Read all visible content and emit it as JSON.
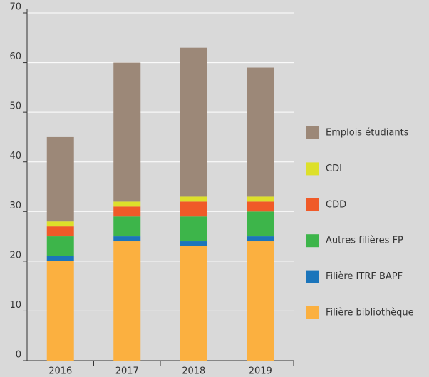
{
  "chart_data": {
    "type": "stacked-bar",
    "categories": [
      "2016",
      "2017",
      "2018",
      "2019"
    ],
    "series": [
      {
        "name": "Filière bibliothèque",
        "color": "#fbb040",
        "values": [
          20,
          24,
          23,
          24
        ]
      },
      {
        "name": "Filière ITRF BAPF",
        "color": "#1b75bb",
        "values": [
          1,
          1,
          1,
          1
        ]
      },
      {
        "name": "Autres filières FP",
        "color": "#3db54a",
        "values": [
          4,
          4,
          5,
          5
        ]
      },
      {
        "name": "CDD",
        "color": "#f05a28",
        "values": [
          2,
          2,
          3,
          2
        ]
      },
      {
        "name": "CDI",
        "color": "#dde02a",
        "values": [
          1,
          1,
          1,
          1
        ]
      },
      {
        "name": "Emplois étudiants",
        "color": "#9c8878",
        "values": [
          17,
          28,
          30,
          26
        ]
      }
    ],
    "ylim": [
      0,
      70
    ],
    "yticks": [
      0,
      10,
      20,
      30,
      40,
      50,
      60,
      70
    ],
    "grid": true
  }
}
